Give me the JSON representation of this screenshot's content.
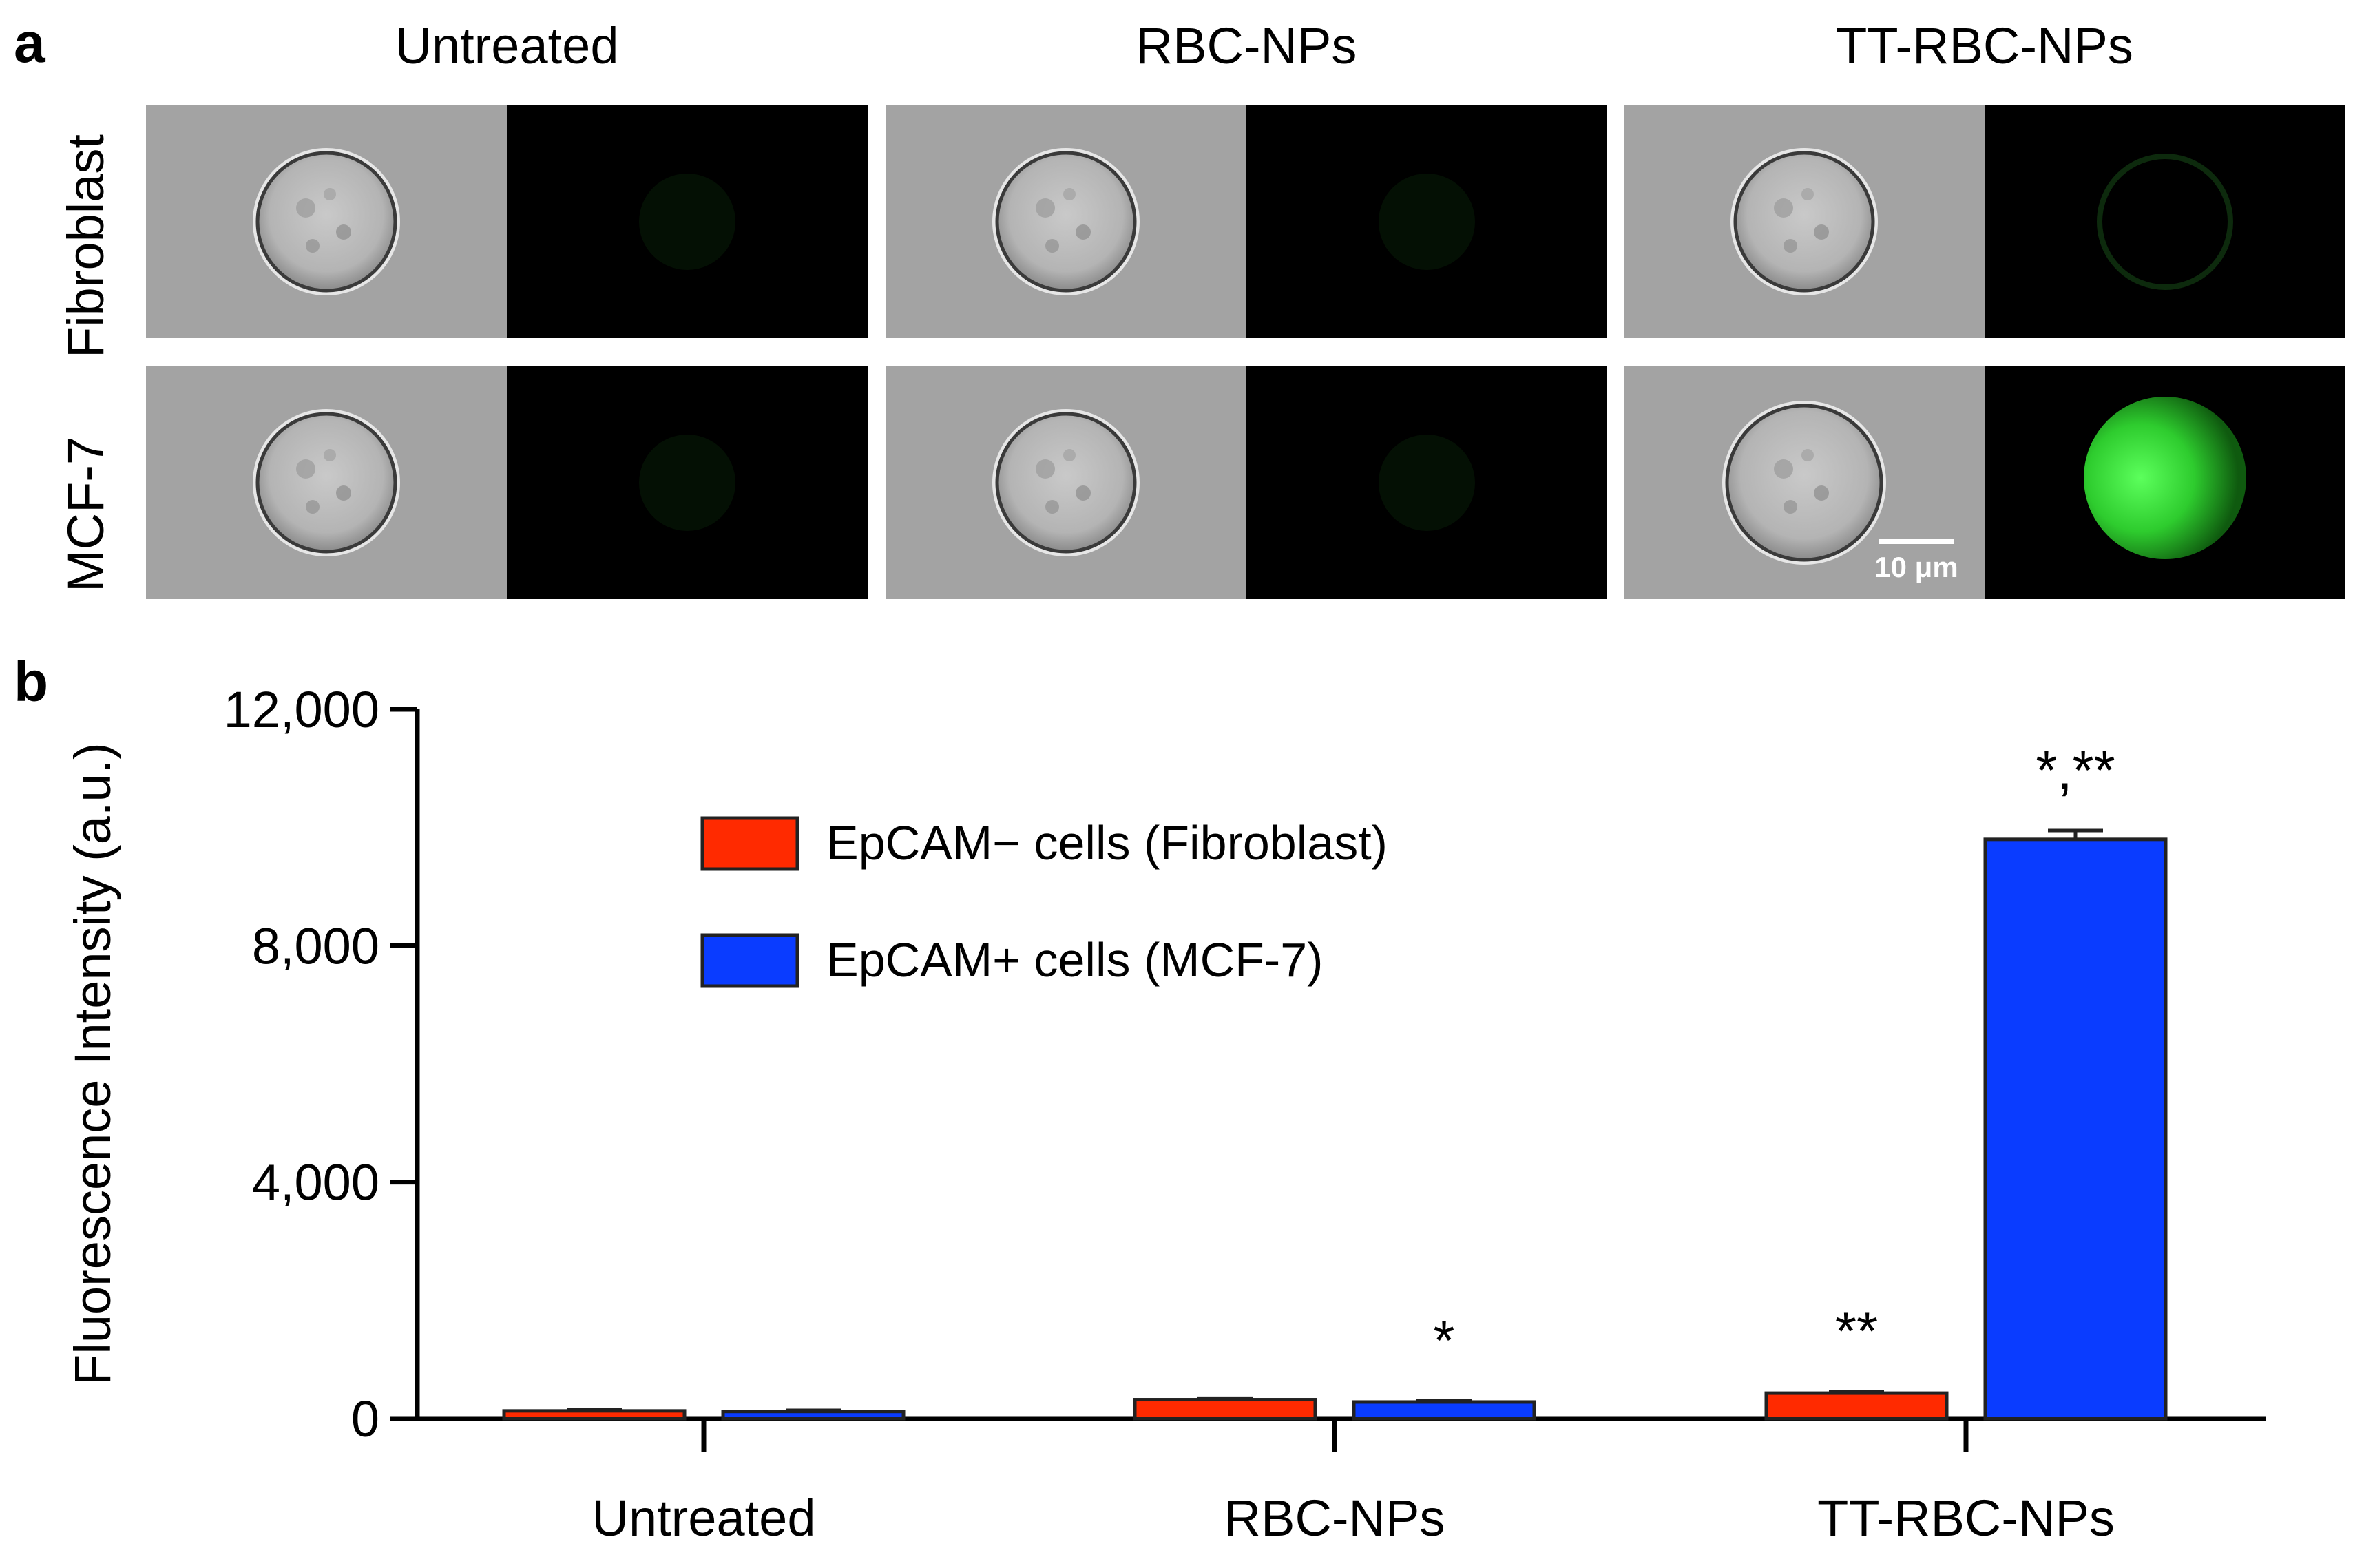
{
  "panel_a": {
    "letter": "a",
    "columns": [
      "Untreated",
      "RBC-NPs",
      "TT-RBC-NPs"
    ],
    "rows": [
      "Fibroblast",
      "MCF-7"
    ],
    "scale_bar": "10 μm",
    "colors": {
      "brightfield_bg": "#a3a3a3",
      "fluorescence_bg": "#000000",
      "fluorescence": "#2ecc2e"
    }
  },
  "panel_b": {
    "letter": "b"
  },
  "chart_data": {
    "type": "bar",
    "categories": [
      "Untreated",
      "RBC-NPs",
      "TT-RBC-NPs"
    ],
    "series": [
      {
        "name": "EpCAM− cells (Fibroblast)",
        "color": "#ff2a00",
        "values": [
          130,
          320,
          430
        ],
        "errors": [
          20,
          25,
          30
        ]
      },
      {
        "name": "EpCAM+ cells (MCF-7)",
        "color": "#0a3cff",
        "values": [
          120,
          280,
          9800
        ],
        "errors": [
          20,
          25,
          150
        ]
      }
    ],
    "annotations": [
      {
        "category": "RBC-NPs",
        "series": 1,
        "text": "*"
      },
      {
        "category": "TT-RBC-NPs",
        "series": 0,
        "text": "**"
      },
      {
        "category": "TT-RBC-NPs",
        "series": 1,
        "text": "*,**"
      }
    ],
    "ylabel": "Fluorescence Intensity (a.u.)",
    "ylim": [
      0,
      12000
    ],
    "yticks": [
      0,
      4000,
      8000,
      12000
    ],
    "ytick_labels": [
      "0",
      "4,000",
      "8,000",
      "12,000"
    ],
    "legend_position": "top-center",
    "grid": false
  }
}
